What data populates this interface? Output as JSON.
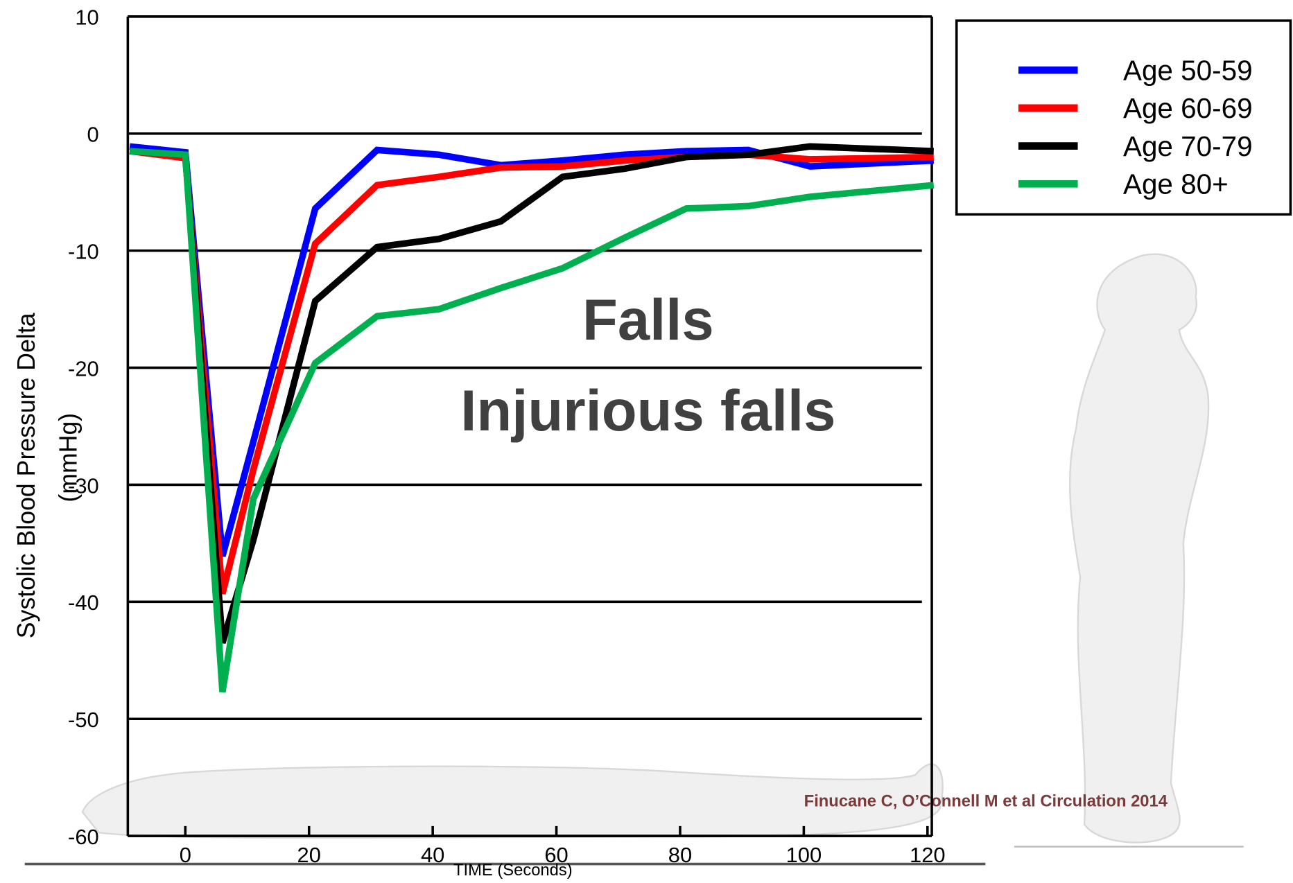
{
  "chart_data": {
    "type": "line",
    "xlabel": "TIME (Seconds)",
    "ylabel": [
      "Systolic Blood Pressure Delta",
      "(mmHg)"
    ],
    "annotations": [
      "Falls",
      "Injurious falls"
    ],
    "citation": "Finucane C, O’Connell M et al Circulation 2014",
    "x": [
      -9,
      0,
      6,
      11,
      21,
      31,
      41,
      51,
      61,
      71,
      81,
      91,
      101,
      121
    ],
    "series": [
      {
        "name": "Age 50-59",
        "color": "#0000ff",
        "values": [
          -1.1,
          -1.6,
          -36.1,
          -26.3,
          -6.4,
          -1.4,
          -1.8,
          -2.7,
          -2.3,
          -1.8,
          -1.5,
          -1.4,
          -2.8,
          -2.3
        ]
      },
      {
        "name": "Age 60-69",
        "color": "#ff0000",
        "values": [
          -1.5,
          -2.1,
          -39.3,
          -28.7,
          -9.4,
          -4.4,
          -3.7,
          -2.9,
          -2.8,
          -2.3,
          -2.0,
          -1.8,
          -2.2,
          -2.0
        ]
      },
      {
        "name": "Age 70-79",
        "color": "#000000",
        "values": [
          -1.5,
          -1.8,
          -43.5,
          -34.7,
          -14.3,
          -9.7,
          -9.0,
          -7.5,
          -3.7,
          -3.0,
          -2.0,
          -1.8,
          -1.1,
          -1.5
        ]
      },
      {
        "name": "Age 80+",
        "color": "#00b050",
        "values": [
          -1.5,
          -1.8,
          -47.7,
          -31.2,
          -19.6,
          -15.6,
          -15.0,
          -13.2,
          -11.5,
          -8.9,
          -6.4,
          -6.2,
          -5.4,
          -4.4
        ]
      }
    ],
    "xlim": [
      -9.3,
      120.7
    ],
    "xticks": [
      0,
      20,
      40,
      60,
      80,
      100,
      120
    ],
    "ylim": [
      -60,
      10
    ],
    "yticks": [
      -60,
      -50,
      -40,
      -30,
      -20,
      -10,
      0,
      10
    ],
    "grid": true,
    "legend": "upper right"
  }
}
